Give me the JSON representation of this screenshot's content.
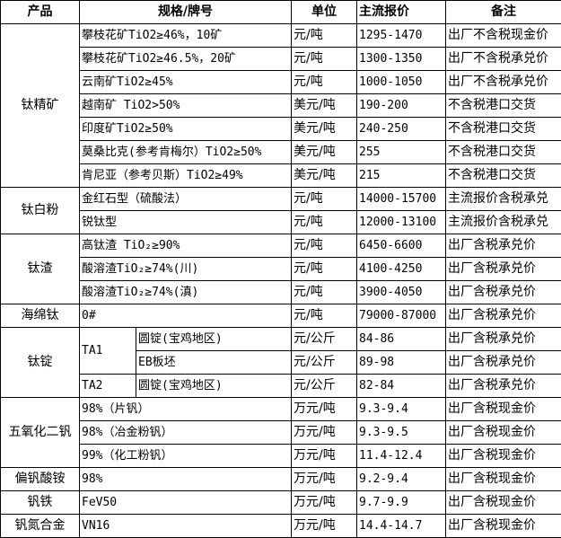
{
  "headers": {
    "product": "产品",
    "spec": "规格/牌号",
    "unit": "单位",
    "price": "主流报价",
    "note": "备注"
  },
  "groups": [
    {
      "product": "钛精矿",
      "items": [
        {
          "spec": "攀枝花矿TiO2≥46%，10矿",
          "unit": "元/吨",
          "price": "1295-1470",
          "note": "出厂不含税现金价"
        },
        {
          "spec": "攀枝花矿TiO2≥46.5%，20矿",
          "unit": "元/吨",
          "price": "1300-1350",
          "note": "出厂不含税承兑价"
        },
        {
          "spec": "云南矿TiO2≥45%",
          "unit": "元/吨",
          "price": "1000-1050",
          "note": "出厂不含税承兑价"
        },
        {
          "spec": "越南矿 TiO2>50%",
          "unit": "美元/吨",
          "price": "190-200",
          "note": "不含税港口交货"
        },
        {
          "spec": "印度矿TiO2≥50%",
          "unit": "美元/吨",
          "price": "240-250",
          "note": "不含税港口交货"
        },
        {
          "spec": "莫桑比克(参考肯梅尔）TiO2≥50%",
          "unit": "美元/吨",
          "price": "255",
          "note": "不含税港口交货"
        },
        {
          "spec": "肯尼亚（参考贝斯）TiO2≥49%",
          "unit": "美元/吨",
          "price": "215",
          "note": "不含税港口交货"
        }
      ]
    },
    {
      "product": "钛白粉",
      "items": [
        {
          "spec": "金红石型（硫酸法）",
          "unit": "元/吨",
          "price": "14000-15700",
          "note": "主流报价含税承兑"
        },
        {
          "spec": "锐钛型",
          "unit": "元/吨",
          "price": "12000-13100",
          "note": "主流报价含税承兑"
        }
      ]
    },
    {
      "product": "钛渣",
      "items": [
        {
          "spec": "高钛渣 TiO₂≥90%",
          "unit": "元/吨",
          "price": "6450-6600",
          "note": "出厂含税承兑价"
        },
        {
          "spec": "酸溶渣TiO₂≥74%(川)",
          "unit": "元/吨",
          "price": "4100-4250",
          "note": "出厂含税承兑价"
        },
        {
          "spec": "酸溶渣TiO₂≥74%(滇)",
          "unit": "元/吨",
          "price": "3900-4050",
          "note": "出厂含税承兑价"
        }
      ]
    },
    {
      "product": "海绵钛",
      "items": [
        {
          "spec": "0#",
          "unit": "元/吨",
          "price": "79000-87000",
          "note": "出厂含税承兑价"
        }
      ]
    },
    {
      "product": "钛锭",
      "items": [
        {
          "grade": "TA1",
          "spec": "圆锭(宝鸡地区)",
          "unit": "元/公斤",
          "price": "84-86",
          "note": "出厂含税承兑价"
        },
        {
          "grade": "TA1",
          "spec": "EB板坯",
          "unit": "元/公斤",
          "price": "89-98",
          "note": "出厂含税承兑价"
        },
        {
          "grade": "TA2",
          "spec": "圆锭(宝鸡地区)",
          "unit": "元/公斤",
          "price": "82-84",
          "note": "出厂含税承兑价"
        }
      ]
    },
    {
      "product": "五氧化二钒",
      "items": [
        {
          "spec": "98%（片钒）",
          "unit": "万元/吨",
          "price": "9.3-9.4",
          "note": "出厂含税现金价"
        },
        {
          "spec": "98%（冶金粉钒）",
          "unit": "万元/吨",
          "price": "9.3-9.5",
          "note": "出厂含税现金价"
        },
        {
          "spec": "99%（化工粉钒）",
          "unit": "万元/吨",
          "price": "11.4-12.4",
          "note": "出厂含税现金价"
        }
      ]
    },
    {
      "product": "偏钒酸铵",
      "items": [
        {
          "spec": "98%",
          "unit": "万元/吨",
          "price": "9.2-9.4",
          "note": "出厂含税现金价"
        }
      ]
    },
    {
      "product": "钒铁",
      "items": [
        {
          "spec": "FeV50",
          "unit": "万元/吨",
          "price": "9.7-9.9",
          "note": "出厂含税现金价"
        }
      ]
    },
    {
      "product": "钒氮合金",
      "items": [
        {
          "spec": "VN16",
          "unit": "万元/吨",
          "price": "14.4-14.7",
          "note": "出厂含税现金价"
        }
      ]
    }
  ]
}
